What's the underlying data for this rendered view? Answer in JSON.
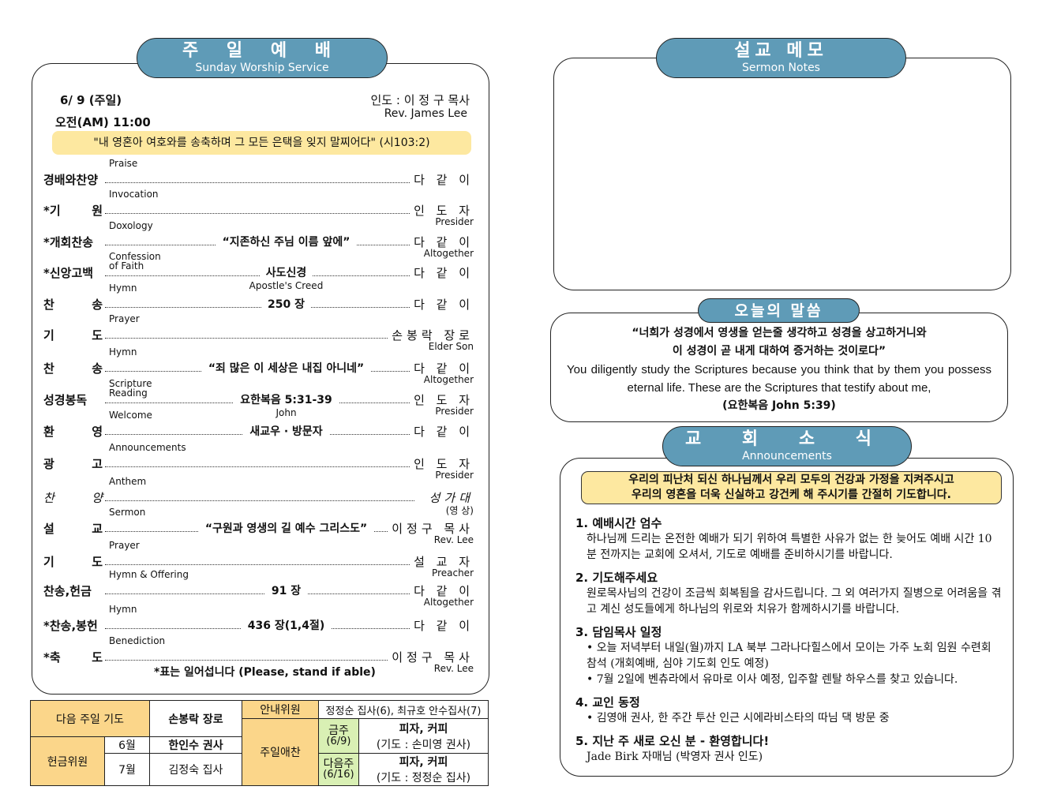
{
  "worship": {
    "title": "주 일 예 배",
    "subtitle": "Sunday Worship Service",
    "date": "6/ 9 (주일)",
    "time": "오전(AM) 11:00",
    "leader": "인도 : 이 정 구 목사",
    "leader_en": "Rev. James Lee",
    "verse": "\"내 영혼아 여호와를 송축하며 그 모든 은택을 잊지 말찌어다\" (시103:2)",
    "stand_note": "*표는 일어섭니다 (Please, stand if able)",
    "items": [
      {
        "ko": "경배와찬양",
        "en": "Praise",
        "mid": "",
        "midsub": "",
        "rt": "다 같 이",
        "rs": ""
      },
      {
        "ko": "*기 원",
        "en": "Invocation",
        "mid": "",
        "midsub": "",
        "rt": "인 도 자",
        "rs": "Presider"
      },
      {
        "ko": "*개회찬송",
        "en": "Doxology",
        "mid": "“지존하신 주님 이름 앞에”",
        "midsub": "",
        "rt": "다 같 이",
        "rs": "Altogether"
      },
      {
        "ko": "*신앙고백",
        "en": "Confession of Faith",
        "mid": "사도신경",
        "midsub": "Apostle's Creed",
        "rt": "다 같 이",
        "rs": ""
      },
      {
        "ko": "찬 송",
        "en": "Hymn",
        "mid": "250 장",
        "midsub": "",
        "rt": "다 같 이",
        "rs": ""
      },
      {
        "ko": "기 도",
        "en": "Prayer",
        "mid": "",
        "midsub": "",
        "rt": "손봉락 장로",
        "rs": "Elder Son"
      },
      {
        "ko": "찬 송",
        "en": "Hymn",
        "mid": "“죄 많은 이 세상은 내집 아니네”",
        "midsub": "",
        "rt": "다 같 이",
        "rs": "Altogether"
      },
      {
        "ko": "성경봉독",
        "en": "Scripture Reading",
        "mid": "요한복음 5:31-39",
        "midsub": "John",
        "rt": "인 도 자",
        "rs": "Presider"
      },
      {
        "ko": "환 영",
        "en": "Welcome",
        "mid": "새교우 · 방문자",
        "midsub": "",
        "rt": "다 같 이",
        "rs": ""
      },
      {
        "ko": "광 고",
        "en": "Announcements",
        "mid": "",
        "midsub": "",
        "rt": "인 도 자",
        "rs": "Presider"
      },
      {
        "ko": "찬 양",
        "en": "Anthem",
        "mid": "",
        "midsub": "",
        "rt": "성가대",
        "rs": "(영 상)"
      },
      {
        "ko": "설 교",
        "en": "Sermon",
        "mid": "“구원과 영생의 길 예수 그리스도”",
        "midsub": "",
        "rt": "이정구 목사",
        "rs": "Rev. Lee"
      },
      {
        "ko": "기 도",
        "en": "Prayer",
        "mid": "",
        "midsub": "",
        "rt": "설 교 자",
        "rs": "Preacher"
      },
      {
        "ko": "찬송,헌금",
        "en": "Hymn & Offering",
        "mid": "91 장",
        "midsub": "",
        "rt": "다 같 이",
        "rs": "Altogether"
      },
      {
        "ko": "*찬송,봉헌",
        "en": "Hymn",
        "mid": "436 장(1,4절)",
        "midsub": "",
        "rt": "다 같 이",
        "rs": ""
      },
      {
        "ko": "*축 도",
        "en": "Benediction",
        "mid": "",
        "midsub": "",
        "rt": "이정구 목사",
        "rs": "Rev. Lee"
      }
    ]
  },
  "roster": {
    "next_prayer_label": "다음 주일 기도",
    "next_prayer": "손봉락 장로",
    "offering_label": "헌금위원",
    "m6": "6월",
    "m6_name": "한인수 권사",
    "m7": "7월",
    "m7_name": "김정숙 집사",
    "usher_label": "안내위원",
    "usher": "정정순 집사(6), 최규호 안수집사(7)",
    "fellowship_label": "주일애찬",
    "this_week": "금주",
    "this_date": "(6/9)",
    "this_food": "피자, 커피",
    "this_prayer": "(기도 : 손미영 권사)",
    "next_week": "다음주",
    "next_date": "(6/16)",
    "next_food": "피자, 커피",
    "next_prayer_f": "(기도 : 정정순 집사)"
  },
  "notes": {
    "title": "설교 메모",
    "subtitle": "Sermon Notes"
  },
  "word": {
    "title": "오늘의 말씀",
    "ko1": "“너희가 성경에서 영생을 얻는줄 생각하고 성경을 상고하거니와",
    "ko2": "이 성경이 곧 내게 대하여 증거하는 것이로다”",
    "en": "You diligently study the Scriptures because you think that by them you possess eternal life. These are the Scriptures that testify about me,",
    "ref": "(요한복음 John 5:39)"
  },
  "news": {
    "title": "교 회 소 식",
    "subtitle": "Announcements",
    "prayer1": "우리의 피난처 되신 하나님께서 우리 모두의 건강과 가정을 지켜주시고",
    "prayer2": "우리의 영혼을 더욱 신실하고 강건케 해 주시기를 간절히 기도합니다.",
    "items": [
      {
        "h": "1. 예배시간 엄수",
        "lines": [
          "하나님께 드리는 온전한 예배가 되기 위하여 특별한 사유가 없는 한 늦어도 예배 시간 10분 전까지는 교회에 오셔서, 기도로 예배를 준비하시기를 바랍니다."
        ]
      },
      {
        "h": "2. 기도해주세요",
        "lines": [
          "원로목사님의 건강이 조금씩 회복됨을 감사드립니다. 그 외 여러가지 질병으로 어려움을 겪고 계신 성도들에게 하나님의 위로와 치유가 함께하시기를 바랍니다."
        ]
      },
      {
        "h": "3. 담임목사 일정",
        "lines": [
          "• 오늘 저녁부터 내일(월)까지 LA 북부 그라나다힐스에서 모이는 가주 노회 임원 수련회 참석 (개회예배, 심야 기도회 인도 예정)",
          "• 7월 2일에 벤츄라에서 유마로 이사 예정, 입주할 렌탈 하우스를 찾고 있습니다."
        ]
      },
      {
        "h": "4. 교인 동정",
        "lines": [
          "• 김영애 권사, 한 주간 투산 인근 시에라비스타의 따님 댁 방문 중"
        ]
      },
      {
        "h": "5. 지난 주 새로 오신 분 - 환영합니다!",
        "lines": [
          "Jade Birk 자매님 (박영자 권사 인도)"
        ]
      }
    ]
  },
  "colors": {
    "pill": "#5f9bb7",
    "verse_bg": "#fde8a0",
    "table_tan": "#fbd68a",
    "table_green": "#d9f0b4"
  }
}
